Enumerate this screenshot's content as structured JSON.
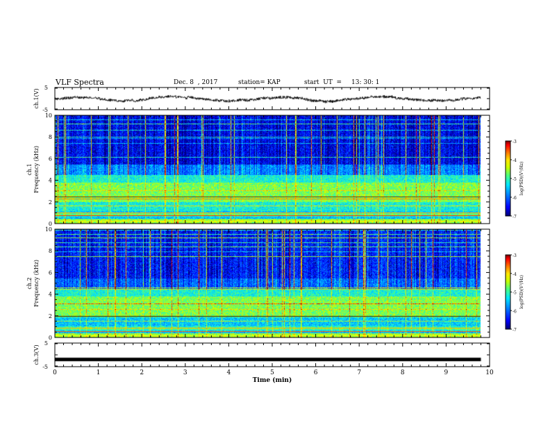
{
  "header": {
    "title": "VLF Spectra",
    "date": "Dec. 8  , 2017",
    "station": "station= KAP",
    "start_label": "start  UT  =",
    "start_value": "13: 30: 1"
  },
  "colors": {
    "trace": "#000000",
    "colormap": [
      "#000090",
      "#0000ff",
      "#0080ff",
      "#00e0ff",
      "#40ff80",
      "#c0ff00",
      "#ffff00",
      "#ff8000",
      "#ff0000",
      "#800000"
    ]
  },
  "chart_data": [
    {
      "type": "line",
      "name": "ch1-waveform",
      "ylabel": "ch.1(V)",
      "ylim": [
        -5,
        5
      ],
      "yticks": [
        "5",
        "-5"
      ],
      "xlim": [
        0,
        10
      ],
      "note": "noisy voltage trace fluctuating around 0 V, mostly within ±2 V, ending near 9.8 min"
    },
    {
      "type": "heatmap",
      "name": "ch1-spectrogram",
      "ylabel": "ch.1\nFrequency (kHz)",
      "ylim": [
        0,
        10
      ],
      "yticks": [
        "0",
        "2",
        "4",
        "6",
        "8",
        "10"
      ],
      "xlim": [
        0,
        10
      ],
      "data_xmax": 9.8,
      "colorbar": {
        "label": "log(PSD)(V²/Hz)",
        "range": [
          -7,
          -3
        ],
        "ticks": [
          "-3",
          "-4",
          "-5",
          "-6",
          "-7"
        ]
      }
    },
    {
      "type": "heatmap",
      "name": "ch2-spectrogram",
      "ylabel": "ch.2\nFrequency (kHz)",
      "ylim": [
        0,
        10
      ],
      "yticks": [
        "0",
        "2",
        "4",
        "6",
        "8",
        "10"
      ],
      "xlim": [
        0,
        10
      ],
      "data_xmax": 9.8,
      "colorbar": {
        "label": "log(PSD)(V²/Hz)",
        "range": [
          -7,
          -3
        ],
        "ticks": [
          "-3",
          "-4",
          "-5",
          "-6",
          "-7"
        ]
      }
    },
    {
      "type": "line",
      "name": "ch3-waveform",
      "ylabel": "ch.3(V)",
      "ylim": [
        -5,
        5
      ],
      "yticks": [
        "5",
        "-5"
      ],
      "xlim": [
        0,
        10
      ],
      "values_constant": -1.8,
      "note": "flat thick line"
    }
  ],
  "xaxis": {
    "label": "Time  (min)",
    "ticks": [
      "0",
      "1",
      "2",
      "3",
      "4",
      "5",
      "6",
      "7",
      "8",
      "9",
      "10"
    ]
  }
}
